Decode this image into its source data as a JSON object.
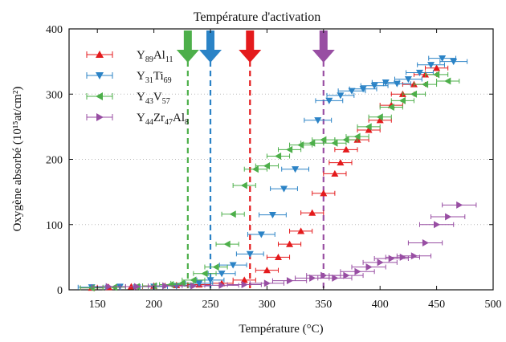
{
  "chart_data": {
    "type": "scatter",
    "title": "Température d'activation",
    "xlabel": "Température (°C)",
    "ylabel": "Oxygène absorbé (10¹⁵at/cm²)",
    "xlim": [
      125,
      500
    ],
    "ylim": [
      0,
      400
    ],
    "x_ticks": [
      150,
      200,
      250,
      300,
      350,
      400,
      450,
      500
    ],
    "y_ticks": [
      0,
      100,
      200,
      300,
      400
    ],
    "grid": "y-dotted",
    "legend_position": "top-left",
    "series": [
      {
        "name": "Y89Al11",
        "label_parts": [
          [
            "Y",
            ""
          ],
          [
            "89",
            "sub"
          ],
          [
            "Al",
            ""
          ],
          [
            "11",
            "sub"
          ]
        ],
        "marker": "triangle-up",
        "color": "#e41a1c",
        "x": [
          145,
          160,
          180,
          200,
          220,
          240,
          260,
          280,
          300,
          310,
          320,
          330,
          340,
          350,
          360,
          365,
          370,
          380,
          390,
          400,
          410,
          420,
          430,
          440,
          450
        ],
        "y": [
          3,
          4,
          5,
          6,
          7,
          8,
          10,
          15,
          30,
          50,
          70,
          90,
          118,
          148,
          178,
          195,
          215,
          230,
          245,
          260,
          283,
          300,
          315,
          330,
          340
        ],
        "xerr": 10
      },
      {
        "name": "Y31Ti69",
        "label_parts": [
          [
            "Y",
            ""
          ],
          [
            "31",
            "sub"
          ],
          [
            "Ti",
            ""
          ],
          [
            "69",
            "sub"
          ]
        ],
        "marker": "triangle-down",
        "color": "#2b83c6",
        "x": [
          145,
          170,
          200,
          220,
          240,
          250,
          260,
          270,
          285,
          295,
          305,
          315,
          325,
          345,
          355,
          365,
          375,
          385,
          395,
          405,
          415,
          425,
          435,
          445,
          455,
          465
        ],
        "y": [
          4,
          5,
          5,
          6,
          10,
          15,
          25,
          38,
          55,
          85,
          115,
          155,
          185,
          260,
          290,
          298,
          305,
          308,
          313,
          318,
          316,
          323,
          333,
          345,
          355,
          350
        ],
        "xerr": 12
      },
      {
        "name": "Y43V57",
        "label_parts": [
          [
            "Y",
            ""
          ],
          [
            "43",
            "sub"
          ],
          [
            "V",
            ""
          ],
          [
            "57",
            "sub"
          ]
        ],
        "marker": "triangle-left",
        "color": "#4daf4a",
        "x": [
          145,
          165,
          185,
          200,
          215,
          225,
          235,
          245,
          255,
          265,
          270,
          280,
          290,
          300,
          310,
          320,
          330,
          340,
          350,
          360,
          370,
          380,
          390,
          400,
          410,
          420,
          430,
          440,
          450,
          460
        ],
        "y": [
          3,
          4,
          5,
          6,
          8,
          10,
          15,
          25,
          35,
          70,
          116,
          160,
          185,
          190,
          205,
          215,
          222,
          225,
          230,
          225,
          230,
          235,
          250,
          265,
          280,
          290,
          300,
          315,
          330,
          320
        ],
        "xerr": 10
      },
      {
        "name": "Y44Zr47Al8",
        "label_parts": [
          [
            "Y",
            ""
          ],
          [
            "44",
            "sub"
          ],
          [
            "Zr",
            ""
          ],
          [
            "47",
            "sub"
          ],
          [
            "Al",
            ""
          ],
          [
            "8",
            "sub"
          ]
        ],
        "marker": "triangle-right",
        "color": "#984ea3",
        "x": [
          160,
          185,
          210,
          235,
          260,
          280,
          300,
          320,
          340,
          350,
          360,
          370,
          380,
          390,
          400,
          410,
          420,
          430,
          440,
          450,
          460,
          470
        ],
        "y": [
          5,
          5,
          6,
          6,
          7,
          8,
          10,
          14,
          18,
          22,
          18,
          22,
          28,
          35,
          42,
          48,
          50,
          52,
          72,
          100,
          112,
          130
        ],
        "xerr": 15
      }
    ],
    "annotations": [
      {
        "x": 230,
        "color": "#4daf4a"
      },
      {
        "x": 250,
        "color": "#2b83c6"
      },
      {
        "x": 285,
        "color": "#e41a1c"
      },
      {
        "x": 350,
        "color": "#984ea3"
      }
    ]
  }
}
